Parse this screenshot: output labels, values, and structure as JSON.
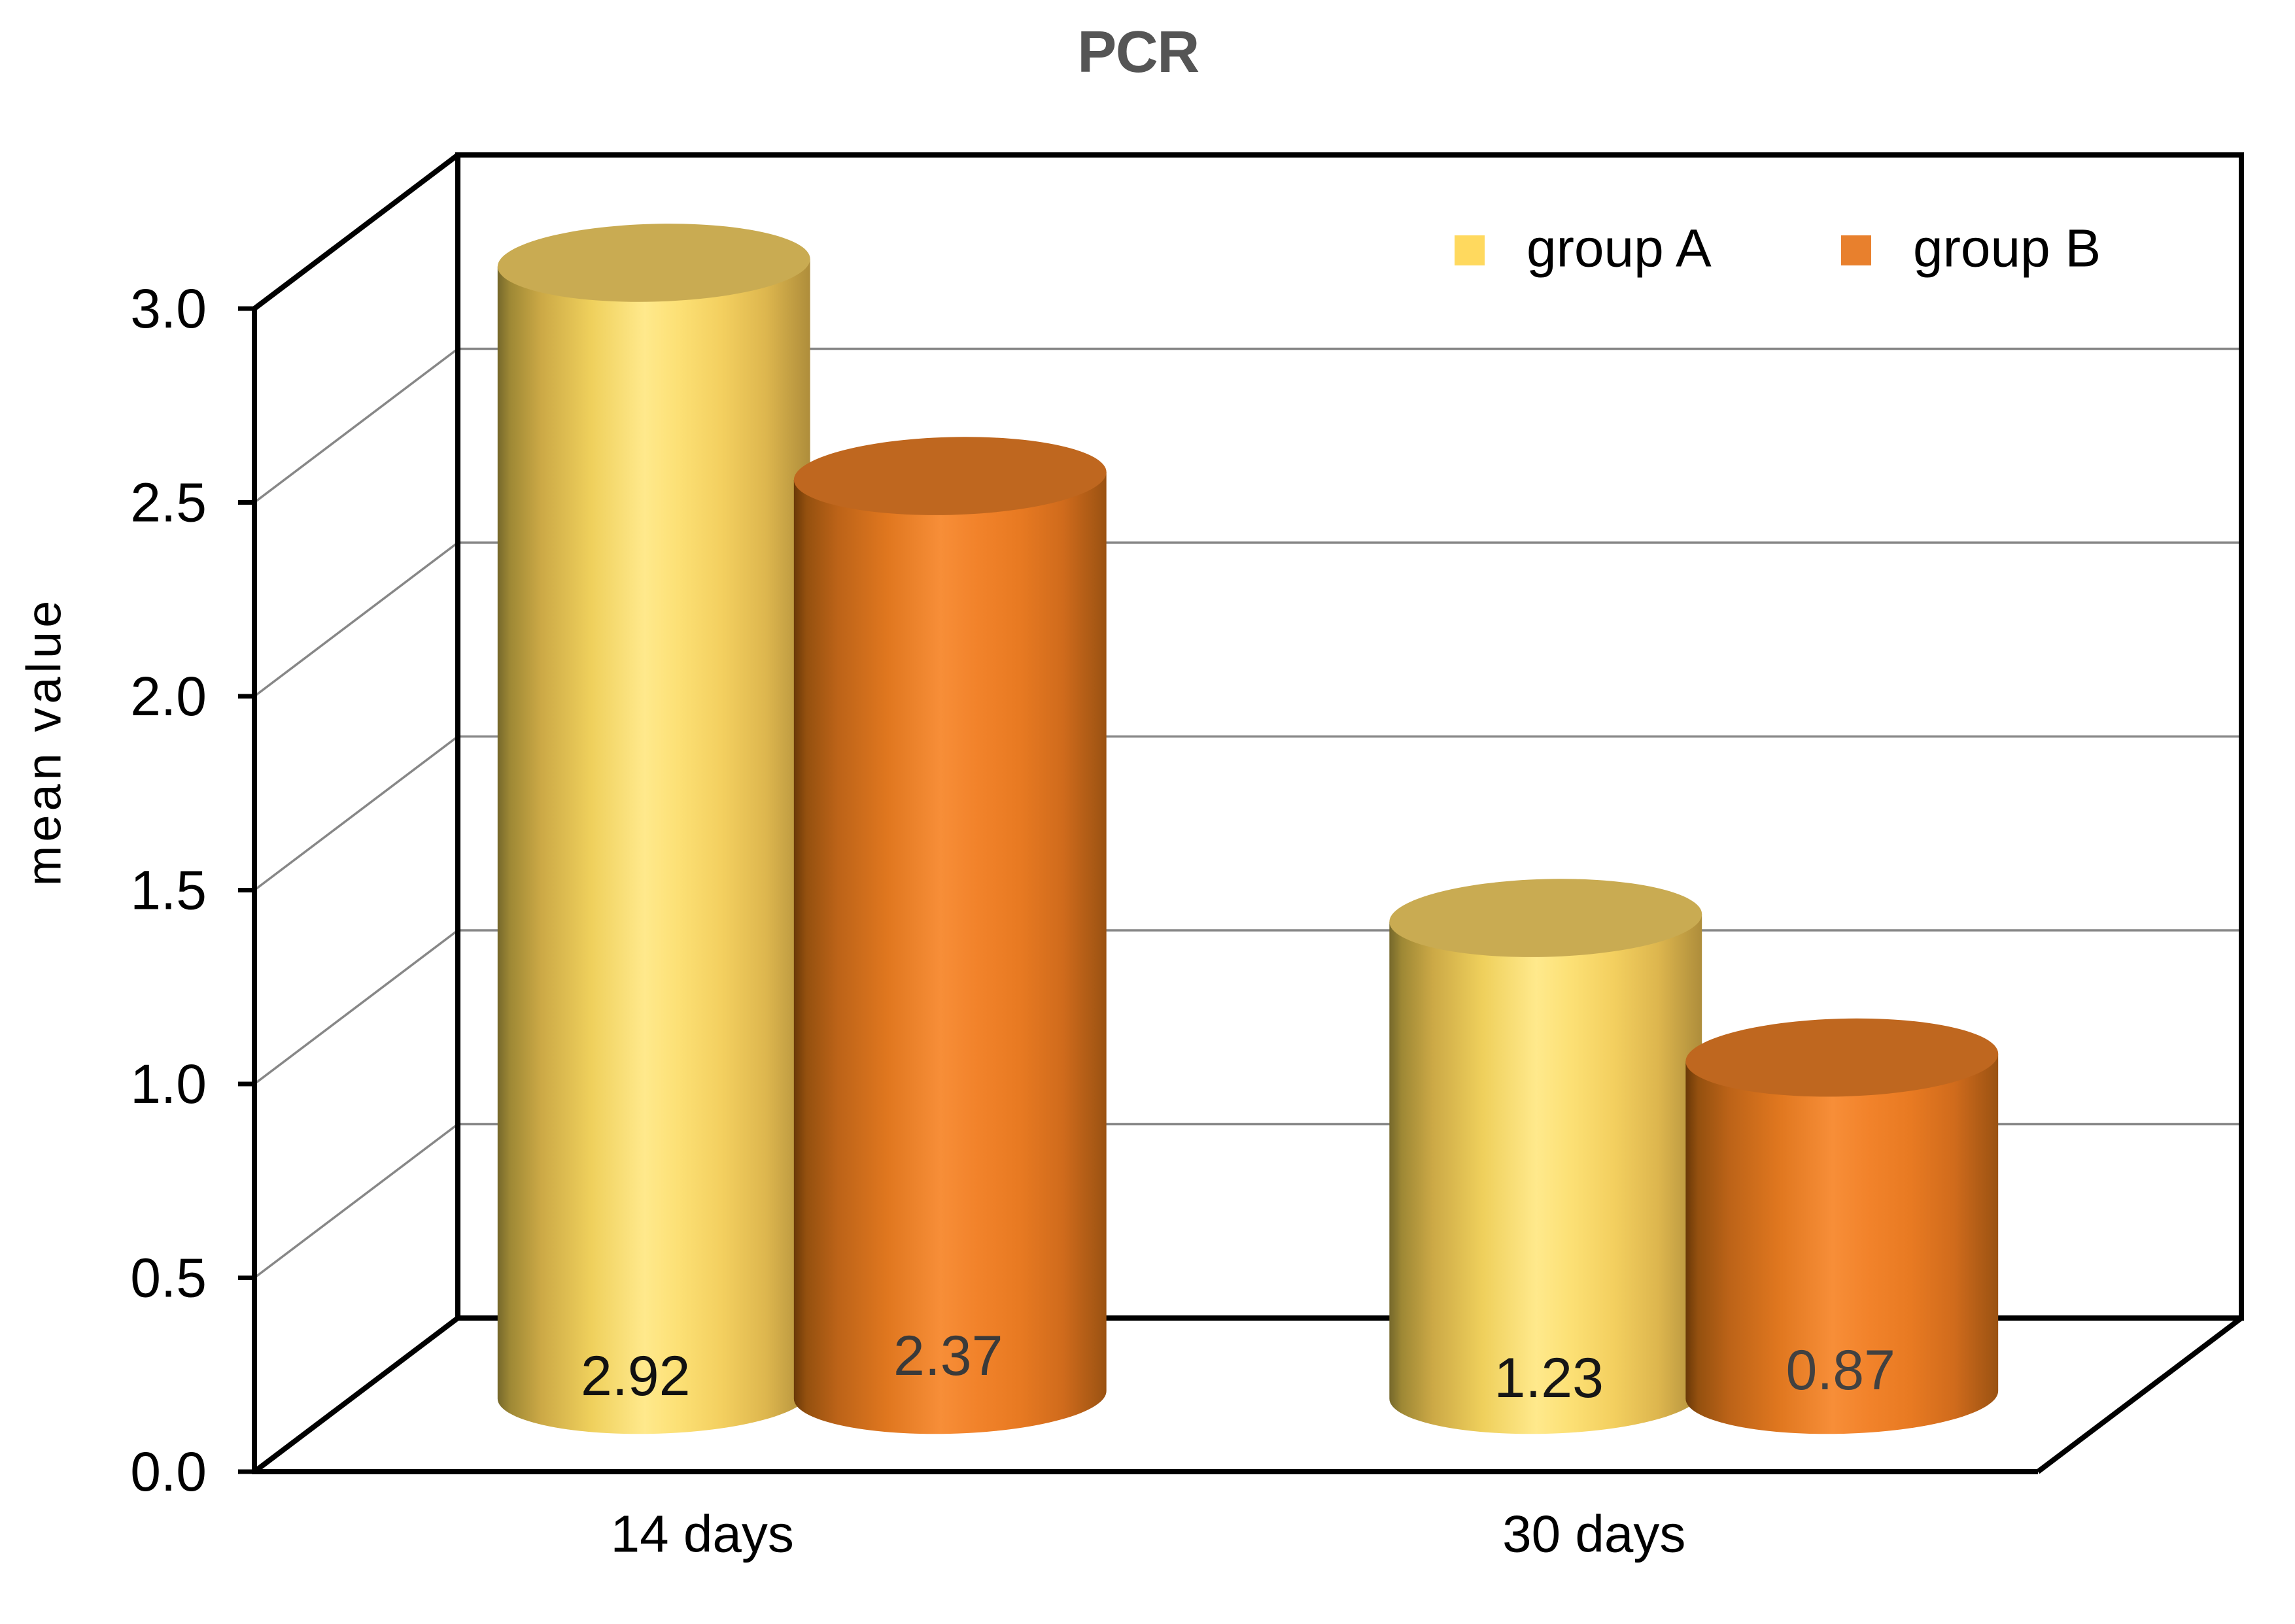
{
  "chart_data": {
    "type": "bar",
    "subtype": "3d-cylinder",
    "title": "PCR",
    "xlabel": "",
    "ylabel": "mean value",
    "categories": [
      "14 days",
      "30 days"
    ],
    "series": [
      {
        "name": "group A",
        "values": [
          2.92,
          1.23
        ],
        "swatch_color": "#FFD95E",
        "top_color": "#C9AB52",
        "gradient": [
          "#75682B",
          "#9E8835",
          "#CCA946",
          "#EFD05C",
          "#FFE98C",
          "#FCE075",
          "#F3CF5F",
          "#DDB64E",
          "#AE8D3B"
        ]
      },
      {
        "name": "group B",
        "values": [
          2.37,
          0.87
        ],
        "swatch_color": "#E8802D",
        "top_color": "#BF671F",
        "gradient": [
          "#693808",
          "#94500F",
          "#BC6318",
          "#E0771F",
          "#F78E38",
          "#F2832B",
          "#E87A22",
          "#D06B1C",
          "#9A5212"
        ]
      }
    ],
    "data_labels": [
      [
        "2.92",
        "1.23"
      ],
      [
        "2.37",
        "0.87"
      ]
    ],
    "data_label_colors": [
      [
        "#111111",
        "#161616"
      ],
      [
        "#3A3A3A",
        "#414141"
      ]
    ],
    "yticks": [
      "0.0",
      "0.5",
      "1.0",
      "1.5",
      "2.0",
      "2.5",
      "3.0"
    ],
    "ylim": [
      0,
      3
    ],
    "grid": true,
    "legend_position": "top-right",
    "title_color": "#555555",
    "axis_color": "#000000",
    "gridline_color": "#878787",
    "text_color": "#000000"
  }
}
